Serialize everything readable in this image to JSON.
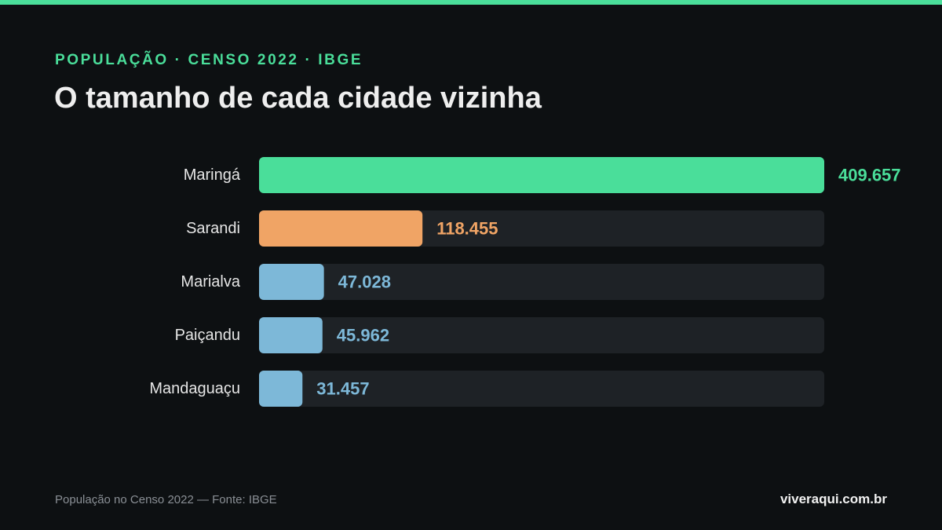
{
  "header": {
    "eyebrow": "POPULAÇÃO · CENSO 2022 · IBGE",
    "title": "O tamanho de cada cidade vizinha"
  },
  "footer": {
    "note": "População no Censo 2022 — Fonte: IBGE",
    "site": "viveraqui.com.br"
  },
  "colors": {
    "accent": "#4ade9a",
    "highlight": "#f0a465",
    "default_bar": "#7db8d8",
    "track": "#1e2226"
  },
  "chart_data": {
    "type": "bar",
    "orientation": "horizontal",
    "categories": [
      "Maringá",
      "Sarandi",
      "Marialva",
      "Paiçandu",
      "Mandaguaçu"
    ],
    "values": [
      409657,
      118455,
      47028,
      45962,
      31457
    ],
    "value_labels": [
      "409.657",
      "118.455",
      "47.028",
      "45.962",
      "31.457"
    ],
    "bar_colors": [
      "#4ade9a",
      "#f0a465",
      "#7db8d8",
      "#7db8d8",
      "#7db8d8"
    ],
    "xlim": [
      0,
      409657
    ],
    "grid": false,
    "legend": "none"
  }
}
